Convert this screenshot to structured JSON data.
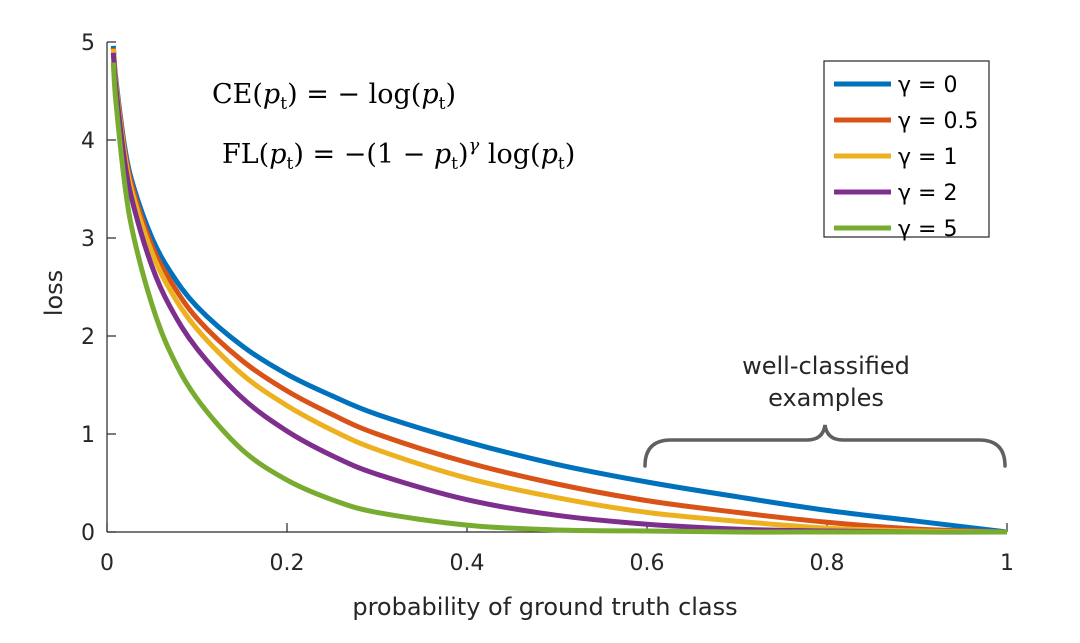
{
  "chart_data": {
    "type": "line",
    "xlabel": "probability of ground truth class",
    "ylabel": "loss",
    "xlim": [
      0,
      1
    ],
    "ylim": [
      0,
      5
    ],
    "xticks": [
      0,
      0.2,
      0.4,
      0.6,
      0.8,
      1
    ],
    "xtick_labels": [
      "0",
      "0.2",
      "0.4",
      "0.6",
      "0.8",
      "1"
    ],
    "yticks": [
      0,
      1,
      2,
      3,
      4,
      5
    ],
    "ytick_labels": [
      "0",
      "1",
      "2",
      "3",
      "4",
      "5"
    ],
    "grid": false,
    "legend_position": "top-right",
    "x": [
      0.007,
      0.01,
      0.02,
      0.03,
      0.05,
      0.07,
      0.1,
      0.15,
      0.2,
      0.25,
      0.3,
      0.4,
      0.5,
      0.6,
      0.7,
      0.8,
      0.9,
      1.0
    ],
    "series": [
      {
        "name": "0",
        "gamma": 0,
        "color": "#0072BD",
        "values": [
          4.96,
          4.61,
          3.91,
          3.51,
          3.0,
          2.66,
          2.3,
          1.9,
          1.61,
          1.39,
          1.2,
          0.92,
          0.69,
          0.51,
          0.36,
          0.22,
          0.11,
          0.0
        ]
      },
      {
        "name": "0.5",
        "gamma": 0.5,
        "color": "#D95319",
        "values": [
          4.94,
          4.58,
          3.87,
          3.46,
          2.92,
          2.57,
          2.18,
          1.75,
          1.44,
          1.2,
          1.0,
          0.71,
          0.49,
          0.32,
          0.2,
          0.1,
          0.03,
          0.0
        ]
      },
      {
        "name": "1",
        "gamma": 1,
        "color": "#EDB120",
        "values": [
          4.93,
          4.56,
          3.83,
          3.4,
          2.85,
          2.47,
          2.07,
          1.61,
          1.29,
          1.04,
          0.84,
          0.55,
          0.35,
          0.2,
          0.11,
          0.04,
          0.01,
          0.0
        ]
      },
      {
        "name": "2",
        "gamma": 2,
        "color": "#7E2F8E",
        "values": [
          4.89,
          4.52,
          3.76,
          3.31,
          2.71,
          2.3,
          1.87,
          1.37,
          1.03,
          0.78,
          0.59,
          0.33,
          0.17,
          0.08,
          0.03,
          0.01,
          0.0,
          0.0
        ]
      },
      {
        "name": "5",
        "gamma": 5,
        "color": "#77AC30",
        "values": [
          4.79,
          4.38,
          3.53,
          3.0,
          2.32,
          1.84,
          1.36,
          0.84,
          0.53,
          0.33,
          0.2,
          0.07,
          0.02,
          0.01,
          0.0,
          0.0,
          0.0,
          0.0
        ]
      }
    ],
    "legend_prefix": "γ = ",
    "equations": [
      {
        "fn": "CE",
        "arg": "p",
        "sub": "t",
        "rhs_prefix": "= − log(",
        "rhs_suffix": ")"
      },
      {
        "fn": "FL",
        "arg": "p",
        "sub": "t",
        "rhs_prefix": "= −(1 − ",
        "rhs_mid": ")",
        "exp": "γ",
        "rhs_log": " log(",
        "rhs_suffix": ")"
      }
    ],
    "annotation": {
      "lines": [
        "well-classified",
        "examples"
      ],
      "x_start": 0.6,
      "x_end": 1.0
    }
  }
}
